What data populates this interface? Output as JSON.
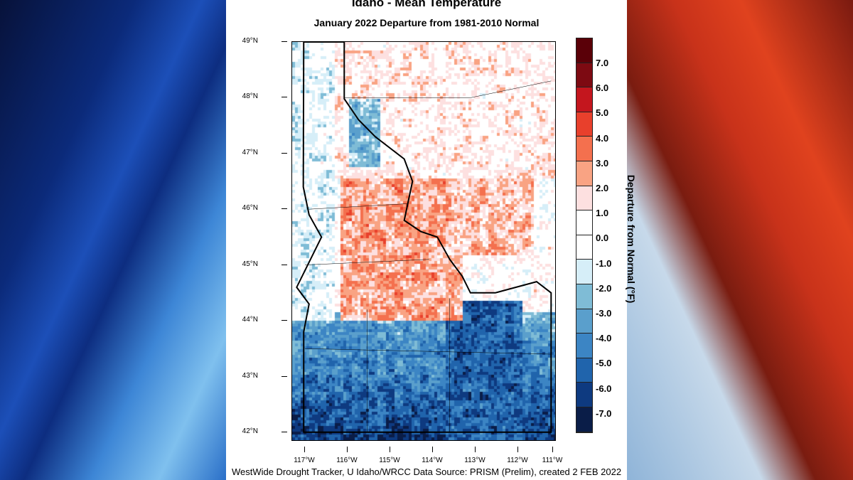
{
  "title": "Idaho - Mean Temperature",
  "subtitle": "January 2022  Departure from 1981-2010 Normal",
  "lat_labels": [
    "49°N",
    "48°N",
    "47°N",
    "46°N",
    "45°N",
    "44°N",
    "43°N",
    "42°N"
  ],
  "lon_labels": [
    "117°W",
    "116°W",
    "115°W",
    "114°W",
    "113°W",
    "112°W",
    "111°W"
  ],
  "colorbar": {
    "title": "Departure from Normal (°F)",
    "labels": [
      "7.0",
      "6.0",
      "5.0",
      "4.0",
      "3.0",
      "2.0",
      "1.0",
      "0.0",
      "-1.0",
      "-2.0",
      "-3.0",
      "-4.0",
      "-5.0",
      "-6.0",
      "-7.0"
    ],
    "colors": [
      "#5a0008",
      "#7d0a12",
      "#c4161e",
      "#e8402c",
      "#f4704e",
      "#f9a383",
      "#fde0e0",
      "#ffffff",
      "#ffffff",
      "#d6eef8",
      "#7fbcd6",
      "#5a9fcc",
      "#3c85c4",
      "#2064ac",
      "#0e3a80",
      "#0a1d48"
    ]
  },
  "footer": "WestWide Drought Tracker, U Idaho/WRCC Data Source: PRISM (Prelim), created  2 FEB 2022"
}
